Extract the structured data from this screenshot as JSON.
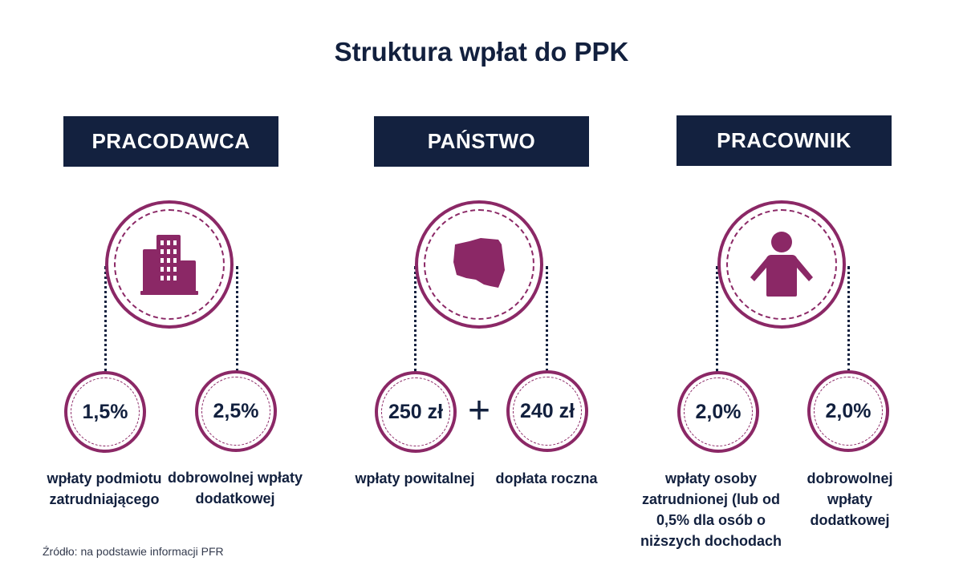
{
  "title": "Struktura wpłat do PPK",
  "colors": {
    "navy": "#13213f",
    "accent": "#8b2866"
  },
  "sections": [
    {
      "header": "PRACODAWCA",
      "icon": "building-icon",
      "items": [
        {
          "value": "1,5%",
          "label": "wpłaty podmiotu zatrudniającego"
        },
        {
          "value": "2,5%",
          "label": "dobrowolnej wpłaty dodatkowej"
        }
      ]
    },
    {
      "header": "PAŃSTWO",
      "icon": "poland-map-icon",
      "operator": "+",
      "items": [
        {
          "value": "250 zł",
          "label": "wpłaty powitalnej"
        },
        {
          "value": "240 zł",
          "label": "dopłata roczna"
        }
      ]
    },
    {
      "header": "PRACOWNIK",
      "icon": "person-icon",
      "items": [
        {
          "value": "2,0%",
          "label": "wpłaty osoby zatrudnionej (lub od 0,5% dla osób o niższych dochodach"
        },
        {
          "value": "2,0%",
          "label": "dobrowolnej wpłaty dodatkowej"
        }
      ]
    }
  ],
  "source": "Źródło: na podstawie informacji PFR"
}
